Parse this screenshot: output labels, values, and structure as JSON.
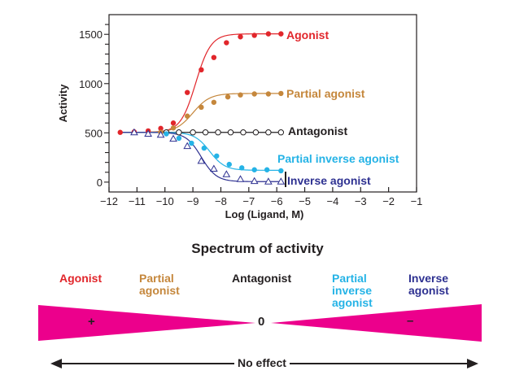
{
  "chart_data": {
    "type": "line",
    "title": "",
    "xlabel": "Log (Ligand, M)",
    "ylabel": "Activity",
    "xlim": [
      -12,
      -1
    ],
    "ylim": [
      -100,
      1700
    ],
    "x_ticks": [
      -12,
      -11,
      -10,
      -9,
      -8,
      -7,
      -6,
      -5,
      -4,
      -3,
      -2,
      -1
    ],
    "x_tick_labels": [
      "−12",
      "−11",
      "−10",
      "−9",
      "−8",
      "−7",
      "−6",
      "−5",
      "−4",
      "−3",
      "−2",
      "−1"
    ],
    "y_ticks": [
      0,
      500,
      1000,
      1500
    ],
    "y_tick_labels": [
      "0",
      "500",
      "1000",
      "1500"
    ],
    "y_minor_step": 100,
    "grid": false,
    "legend": "inline-right-of-series",
    "series": [
      {
        "name": "Agonist",
        "color": "#e1262b",
        "marker": "filled-circle",
        "x": [
          -11.6,
          -11.1,
          -10.6,
          -10.15,
          -9.7,
          -9.2,
          -8.7,
          -8.25,
          -7.8,
          -7.3,
          -6.8,
          -6.3,
          -5.85
        ],
        "y": [
          505,
          510,
          520,
          545,
          600,
          910,
          1140,
          1265,
          1415,
          1475,
          1490,
          1505,
          1505
        ],
        "fit": {
          "bottom": 505,
          "top": 1505,
          "logEC50": -8.9,
          "hill": 1.0
        }
      },
      {
        "name": "Partial agonist",
        "color": "#c5873c",
        "marker": "filled-circle",
        "x": [
          -10.15,
          -9.7,
          -9.2,
          -8.7,
          -8.25,
          -7.75,
          -7.3,
          -6.8,
          -6.3,
          -5.85
        ],
        "y": [
          505,
          550,
          670,
          760,
          810,
          865,
          885,
          895,
          895,
          900
        ],
        "fit": {
          "bottom": 505,
          "top": 900,
          "logEC50": -9.0,
          "hill": 0.9
        }
      },
      {
        "name": "Antagonist",
        "color": "#231f20",
        "marker": "open-circle",
        "x": [
          -9.95,
          -9.5,
          -9.0,
          -8.55,
          -8.1,
          -7.65,
          -7.2,
          -6.75,
          -6.3,
          -5.85
        ],
        "y": [
          505,
          505,
          505,
          505,
          505,
          505,
          505,
          505,
          505,
          505
        ]
      },
      {
        "name": "Partial inverse agonist",
        "color": "#25b3e6",
        "marker": "filled-circle",
        "x": [
          -9.95,
          -9.5,
          -9.05,
          -8.6,
          -8.15,
          -7.7,
          -7.25,
          -6.8,
          -6.35,
          -5.85
        ],
        "y": [
          490,
          445,
          395,
          345,
          265,
          180,
          145,
          125,
          125,
          115
        ],
        "fit": {
          "bottom": 505,
          "top": 120,
          "logEC50": -8.4,
          "hill": 1.0
        }
      },
      {
        "name": "Inverse agonist",
        "color": "#2e3191",
        "marker": "open-triangle",
        "x": [
          -11.1,
          -10.6,
          -10.15,
          -9.7,
          -9.2,
          -8.7,
          -8.25,
          -7.8,
          -7.3,
          -6.8,
          -6.3,
          -5.85
        ],
        "y": [
          505,
          490,
          480,
          440,
          365,
          215,
          135,
          80,
          30,
          10,
          5,
          5
        ],
        "fit": {
          "bottom": 505,
          "top": 5,
          "logEC50": -8.7,
          "hill": 1.0
        }
      }
    ]
  },
  "spectrum": {
    "title": "Spectrum of activity",
    "labels": [
      {
        "text": "Agonist",
        "color": "#e1262b"
      },
      {
        "text": "Partial\nagonist",
        "color": "#c5873c"
      },
      {
        "text": "Antagonist",
        "color": "#231f20"
      },
      {
        "text": "Partial\ninverse\nagonist",
        "color": "#25b3e6"
      },
      {
        "text": "Inverse\nagonist",
        "color": "#2e3191"
      }
    ],
    "wedge_color": "#ec008c",
    "plus_sign": "+",
    "zero_sign": "0",
    "minus_sign": "–",
    "no_effect_label": "No effect"
  }
}
